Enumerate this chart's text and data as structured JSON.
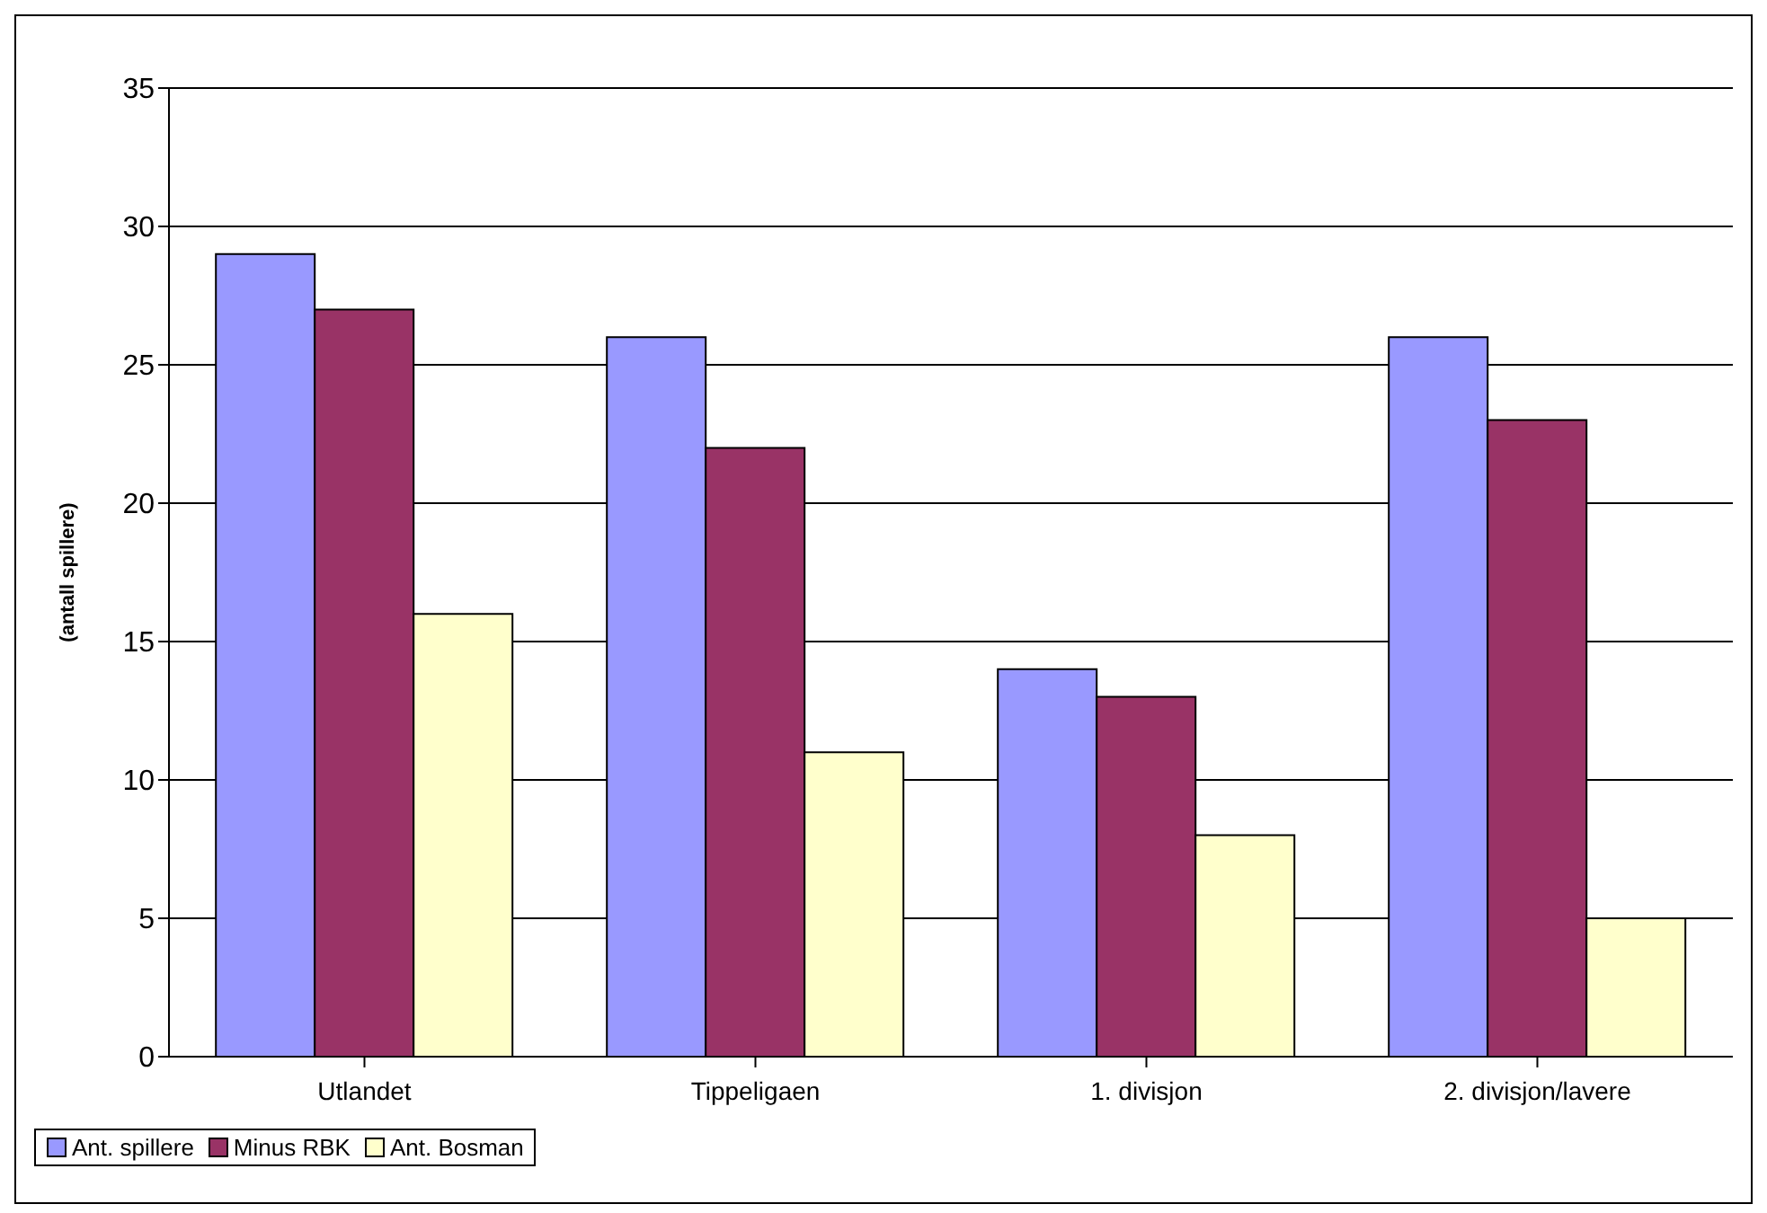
{
  "chart_data": {
    "type": "bar",
    "ylabel": "(antall spillere)",
    "categories": [
      "Utlandet",
      "Tippeligaen",
      "1. divisjon",
      "2. divisjon/lavere"
    ],
    "series": [
      {
        "name": "Ant. spillere",
        "color": "#9999ff",
        "values": [
          29,
          26,
          14,
          26
        ]
      },
      {
        "name": "Minus RBK",
        "color": "#993366",
        "values": [
          27,
          22,
          13,
          23
        ]
      },
      {
        "name": "Ant. Bosman",
        "color": "#ffffcc",
        "values": [
          16,
          11,
          8,
          5
        ]
      }
    ],
    "ylim": [
      0,
      35
    ],
    "yticks": [
      0,
      5,
      10,
      15,
      20,
      25,
      30,
      35
    ],
    "grid": "y",
    "legend": "bottom"
  }
}
